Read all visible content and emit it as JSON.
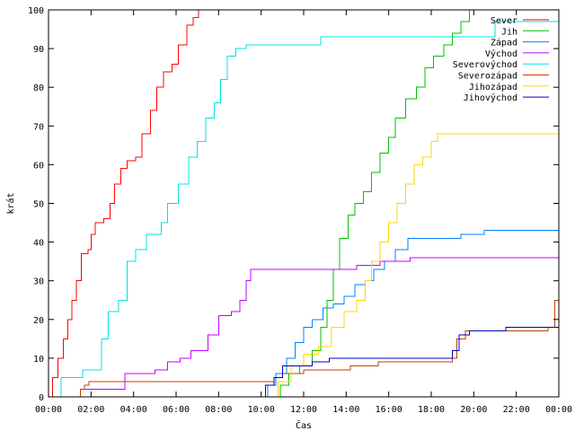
{
  "chart_data": {
    "type": "line",
    "xlabel": "Čas",
    "ylabel": "krát",
    "xlim": [
      0,
      24
    ],
    "ylim": [
      0,
      100
    ],
    "xticks": [
      0,
      2,
      4,
      6,
      8,
      10,
      12,
      14,
      16,
      18,
      20,
      22,
      24
    ],
    "xtick_labels": [
      "00:00",
      "02:00",
      "04:00",
      "06:00",
      "08:00",
      "10:00",
      "12:00",
      "14:00",
      "16:00",
      "18:00",
      "20:00",
      "22:00",
      "00:00"
    ],
    "yticks": [
      0,
      10,
      20,
      30,
      40,
      50,
      60,
      70,
      80,
      90,
      100
    ],
    "ytick_labels": [
      "0",
      "10",
      "20",
      "30",
      "40",
      "50",
      "60",
      "70",
      "80",
      "90",
      "100"
    ],
    "grid": false,
    "legend_position": "top-right",
    "series": [
      {
        "name": "Sever",
        "color": "#ff0000",
        "points": [
          [
            0.0,
            0
          ],
          [
            0.2,
            5
          ],
          [
            0.45,
            10
          ],
          [
            0.7,
            15
          ],
          [
            0.9,
            20
          ],
          [
            1.1,
            25
          ],
          [
            1.3,
            30
          ],
          [
            1.55,
            37
          ],
          [
            1.85,
            38
          ],
          [
            2.0,
            42
          ],
          [
            2.2,
            45
          ],
          [
            2.6,
            46
          ],
          [
            2.9,
            50
          ],
          [
            3.1,
            55
          ],
          [
            3.4,
            59
          ],
          [
            3.7,
            61
          ],
          [
            4.1,
            62
          ],
          [
            4.4,
            68
          ],
          [
            4.8,
            74
          ],
          [
            5.1,
            80
          ],
          [
            5.4,
            84
          ],
          [
            5.8,
            86
          ],
          [
            6.1,
            91
          ],
          [
            6.5,
            96
          ],
          [
            6.8,
            98
          ],
          [
            7.05,
            100
          ]
        ]
      },
      {
        "name": "Jih",
        "color": "#00c000",
        "points": [
          [
            10.6,
            0
          ],
          [
            10.9,
            3
          ],
          [
            11.3,
            6
          ],
          [
            11.8,
            8
          ],
          [
            12.4,
            12
          ],
          [
            12.8,
            18
          ],
          [
            13.1,
            25
          ],
          [
            13.4,
            33
          ],
          [
            13.7,
            41
          ],
          [
            14.1,
            47
          ],
          [
            14.4,
            50
          ],
          [
            14.8,
            53
          ],
          [
            15.2,
            58
          ],
          [
            15.6,
            63
          ],
          [
            16.0,
            67
          ],
          [
            16.3,
            72
          ],
          [
            16.8,
            77
          ],
          [
            17.3,
            80
          ],
          [
            17.7,
            85
          ],
          [
            18.1,
            88
          ],
          [
            18.6,
            91
          ],
          [
            19.0,
            94
          ],
          [
            19.4,
            97
          ],
          [
            19.8,
            100
          ]
        ]
      },
      {
        "name": "Západ",
        "color": "#0080ff",
        "points": [
          [
            10.0,
            0
          ],
          [
            10.3,
            3
          ],
          [
            10.7,
            6
          ],
          [
            11.2,
            10
          ],
          [
            11.6,
            14
          ],
          [
            12.0,
            18
          ],
          [
            12.4,
            20
          ],
          [
            12.9,
            23
          ],
          [
            13.4,
            24
          ],
          [
            13.9,
            26
          ],
          [
            14.4,
            29
          ],
          [
            14.9,
            30
          ],
          [
            15.3,
            33
          ],
          [
            15.8,
            35
          ],
          [
            16.3,
            38
          ],
          [
            16.9,
            41
          ],
          [
            17.5,
            41
          ],
          [
            18.5,
            41
          ],
          [
            19.4,
            42
          ],
          [
            20.5,
            43
          ],
          [
            23.8,
            43
          ],
          [
            24.0,
            46
          ]
        ]
      },
      {
        "name": "Východ",
        "color": "#c000ff",
        "points": [
          [
            1.4,
            0
          ],
          [
            1.5,
            2
          ],
          [
            3.2,
            2
          ],
          [
            3.6,
            6
          ],
          [
            5.0,
            7
          ],
          [
            5.6,
            9
          ],
          [
            6.2,
            10
          ],
          [
            6.7,
            12
          ],
          [
            7.5,
            16
          ],
          [
            8.0,
            21
          ],
          [
            8.6,
            22
          ],
          [
            9.0,
            25
          ],
          [
            9.3,
            30
          ],
          [
            9.5,
            33
          ],
          [
            11.0,
            33
          ],
          [
            13.0,
            33
          ],
          [
            14.5,
            34
          ],
          [
            15.6,
            35
          ],
          [
            17.0,
            36
          ],
          [
            24.0,
            36
          ]
        ]
      },
      {
        "name": "Severovýchod",
        "color": "#00e0e0",
        "points": [
          [
            0.5,
            0
          ],
          [
            0.6,
            5
          ],
          [
            1.6,
            7
          ],
          [
            2.5,
            15
          ],
          [
            2.8,
            22
          ],
          [
            3.3,
            25
          ],
          [
            3.7,
            35
          ],
          [
            4.1,
            38
          ],
          [
            4.6,
            42
          ],
          [
            5.3,
            45
          ],
          [
            5.6,
            50
          ],
          [
            6.1,
            55
          ],
          [
            6.6,
            62
          ],
          [
            7.0,
            66
          ],
          [
            7.4,
            72
          ],
          [
            7.8,
            76
          ],
          [
            8.1,
            82
          ],
          [
            8.4,
            88
          ],
          [
            8.8,
            90
          ],
          [
            9.3,
            91
          ],
          [
            10.5,
            91
          ],
          [
            12.8,
            93
          ],
          [
            14.5,
            93
          ],
          [
            16.5,
            93
          ],
          [
            18.0,
            93
          ],
          [
            19.5,
            93
          ],
          [
            21.0,
            97
          ],
          [
            24.0,
            97
          ]
        ]
      },
      {
        "name": "Severozápad",
        "color": "#c04000",
        "points": [
          [
            1.3,
            0
          ],
          [
            1.5,
            2
          ],
          [
            1.7,
            3
          ],
          [
            1.9,
            4
          ],
          [
            8.0,
            4
          ],
          [
            10.3,
            4
          ],
          [
            10.6,
            5
          ],
          [
            11.0,
            6
          ],
          [
            11.5,
            6
          ],
          [
            11.9,
            6
          ],
          [
            12.0,
            7
          ],
          [
            13.8,
            7
          ],
          [
            14.2,
            8
          ],
          [
            15.5,
            9
          ],
          [
            18.0,
            9
          ],
          [
            19.0,
            10
          ],
          [
            19.2,
            15
          ],
          [
            19.6,
            17
          ],
          [
            21.5,
            17
          ],
          [
            23.5,
            18
          ],
          [
            23.8,
            25
          ],
          [
            24.0,
            25
          ]
        ]
      },
      {
        "name": "Jihozápad",
        "color": "#ffd700",
        "points": [
          [
            10.2,
            0
          ],
          [
            10.8,
            4
          ],
          [
            11.4,
            8
          ],
          [
            12.0,
            11
          ],
          [
            12.7,
            13
          ],
          [
            13.3,
            18
          ],
          [
            13.9,
            22
          ],
          [
            14.5,
            25
          ],
          [
            14.9,
            30
          ],
          [
            15.2,
            35
          ],
          [
            15.6,
            40
          ],
          [
            16.0,
            45
          ],
          [
            16.4,
            50
          ],
          [
            16.8,
            55
          ],
          [
            17.2,
            60
          ],
          [
            17.6,
            62
          ],
          [
            18.0,
            66
          ],
          [
            18.3,
            68
          ],
          [
            24.0,
            68
          ]
        ]
      },
      {
        "name": "Jihovýchod",
        "color": "#0000c0",
        "points": [
          [
            10.0,
            0
          ],
          [
            10.2,
            3
          ],
          [
            10.6,
            5
          ],
          [
            11.0,
            8
          ],
          [
            11.5,
            8
          ],
          [
            12.4,
            9
          ],
          [
            13.2,
            10
          ],
          [
            16.2,
            10
          ],
          [
            18.6,
            10
          ],
          [
            19.0,
            12
          ],
          [
            19.3,
            16
          ],
          [
            19.8,
            17
          ],
          [
            21.5,
            18
          ],
          [
            24.0,
            18
          ]
        ]
      }
    ]
  }
}
